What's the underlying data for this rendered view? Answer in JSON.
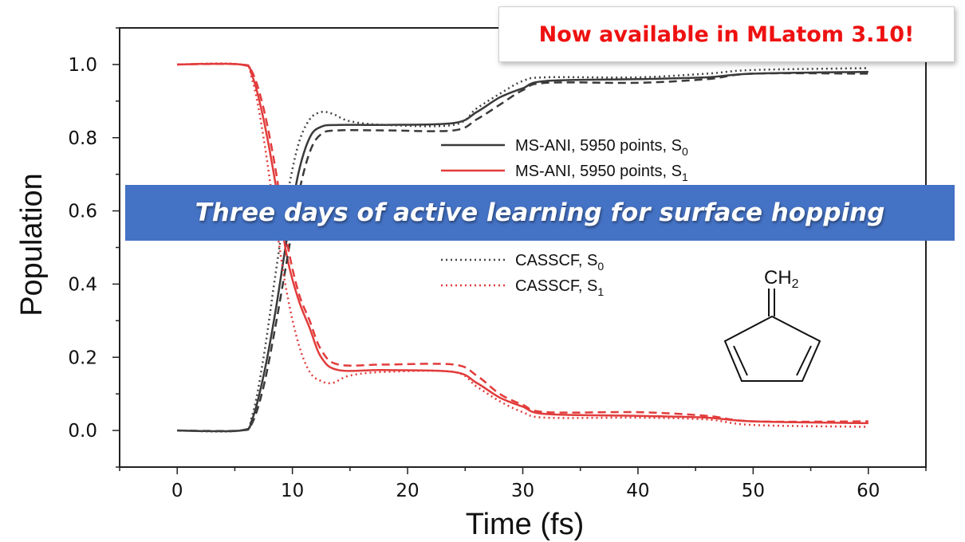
{
  "chart_data": {
    "type": "line",
    "xlabel": "Time (fs)",
    "ylabel": "Population",
    "xlim": [
      -5,
      65
    ],
    "ylim": [
      -0.1,
      1.1
    ],
    "xticks": [
      0,
      10,
      20,
      30,
      40,
      50,
      60
    ],
    "yticks": [
      0.0,
      0.2,
      0.4,
      0.6,
      0.8,
      1.0
    ],
    "xtick_labels": [
      "0",
      "10",
      "20",
      "30",
      "40",
      "50",
      "60"
    ],
    "ytick_labels": [
      "0.0",
      "0.2",
      "0.4",
      "0.6",
      "0.8",
      "1.0"
    ],
    "grid": false,
    "legend_position": "upper-middle",
    "series": [
      {
        "name_main": "MS-ANI, 5950 points, S",
        "name_sub": "0",
        "color": "#3a3a3a",
        "style": "solid",
        "x": [
          0,
          5.5,
          6.5,
          7.5,
          8.5,
          9.5,
          10.5,
          11.5,
          12.5,
          14,
          18,
          24,
          26,
          28,
          30,
          32,
          40,
          46,
          50,
          60
        ],
        "y": [
          0,
          0,
          0.03,
          0.15,
          0.32,
          0.52,
          0.7,
          0.8,
          0.83,
          0.835,
          0.835,
          0.84,
          0.87,
          0.91,
          0.935,
          0.955,
          0.96,
          0.965,
          0.975,
          0.98
        ]
      },
      {
        "name_main": "MS-ANI, 5950 points, S",
        "name_sub": "1",
        "color": "#e23c3c",
        "style": "solid",
        "x": [
          0,
          5.5,
          6.5,
          7.5,
          8.5,
          9.5,
          10.5,
          11.5,
          12.5,
          14,
          18,
          24,
          26,
          28,
          30,
          32,
          40,
          46,
          50,
          60
        ],
        "y": [
          1,
          1,
          0.97,
          0.85,
          0.68,
          0.48,
          0.36,
          0.28,
          0.2,
          0.165,
          0.165,
          0.16,
          0.13,
          0.09,
          0.065,
          0.045,
          0.04,
          0.035,
          0.025,
          0.02
        ]
      },
      {
        "name": "",
        "color": "#3a3a3a",
        "style": "dashed",
        "x": [
          0,
          5.5,
          6.5,
          7.5,
          8.5,
          9.5,
          10.5,
          11.5,
          12.5,
          14,
          18,
          24,
          26,
          28,
          30,
          32,
          40,
          46,
          50,
          60
        ],
        "y": [
          0,
          0,
          0.02,
          0.12,
          0.28,
          0.46,
          0.64,
          0.76,
          0.81,
          0.82,
          0.82,
          0.82,
          0.85,
          0.89,
          0.93,
          0.95,
          0.95,
          0.96,
          0.975,
          0.975
        ]
      },
      {
        "name": "",
        "color": "#e23c3c",
        "style": "dashed",
        "x": [
          0,
          5.5,
          6.5,
          7.5,
          8.5,
          9.5,
          10.5,
          11.5,
          12.5,
          14,
          18,
          24,
          26,
          28,
          30,
          32,
          40,
          46,
          50,
          60
        ],
        "y": [
          1,
          1,
          0.98,
          0.88,
          0.72,
          0.52,
          0.38,
          0.3,
          0.22,
          0.18,
          0.18,
          0.18,
          0.15,
          0.1,
          0.07,
          0.05,
          0.05,
          0.04,
          0.025,
          0.025
        ]
      },
      {
        "name_main": "CASSCF, S",
        "name_sub": "0",
        "color": "#444444",
        "style": "dotted",
        "x": [
          0,
          5.5,
          6.5,
          7.5,
          8.5,
          9.5,
          10.5,
          11.5,
          12.5,
          13.5,
          15,
          18,
          24,
          26,
          28,
          30,
          32,
          40,
          46,
          50,
          60
        ],
        "y": [
          0,
          0,
          0.04,
          0.2,
          0.42,
          0.63,
          0.78,
          0.85,
          0.87,
          0.865,
          0.845,
          0.835,
          0.835,
          0.88,
          0.92,
          0.955,
          0.965,
          0.965,
          0.975,
          0.985,
          0.99
        ]
      },
      {
        "name_main": "CASSCF, S",
        "name_sub": "1",
        "color": "#e23c3c",
        "style": "dotted",
        "x": [
          0,
          5.5,
          6.5,
          7.5,
          8.5,
          9.5,
          10.5,
          11.5,
          12.5,
          13.5,
          15,
          18,
          24,
          26,
          28,
          30,
          32,
          40,
          46,
          50,
          60
        ],
        "y": [
          1,
          1,
          0.96,
          0.8,
          0.58,
          0.38,
          0.24,
          0.16,
          0.135,
          0.13,
          0.15,
          0.16,
          0.16,
          0.12,
          0.08,
          0.05,
          0.035,
          0.035,
          0.03,
          0.015,
          0.01
        ]
      }
    ]
  },
  "banner": {
    "text": "Three days of active learning for surface hopping"
  },
  "notice": {
    "text": "Now available in MLatom 3.10!"
  },
  "molecule": {
    "label_main": "CH",
    "label_sub": "2"
  }
}
